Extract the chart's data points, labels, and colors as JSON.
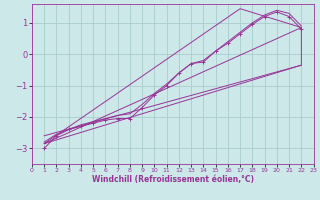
{
  "background_color": "#cce8e8",
  "grid_color": "#aacccc",
  "line_color": "#993399",
  "xlabel": "Windchill (Refroidissement éolien,°C)",
  "xlabel_fontsize": 5.5,
  "xtick_fontsize": 4.5,
  "ytick_fontsize": 6,
  "xlim": [
    0,
    23
  ],
  "ylim": [
    -3.5,
    1.6
  ],
  "yticks": [
    -3,
    -2,
    -1,
    0,
    1
  ],
  "xticks": [
    0,
    1,
    2,
    3,
    4,
    5,
    6,
    7,
    8,
    9,
    10,
    11,
    12,
    13,
    14,
    15,
    16,
    17,
    18,
    19,
    20,
    21,
    22,
    23
  ],
  "lines": [
    {
      "x": [
        1,
        2,
        3,
        4,
        5,
        6,
        7,
        8,
        9,
        10,
        11,
        12,
        13,
        14,
        15,
        16,
        17,
        18,
        19,
        20,
        21,
        22
      ],
      "y": [
        -3.0,
        -2.6,
        -2.4,
        -2.3,
        -2.2,
        -2.1,
        -2.05,
        -2.05,
        -1.7,
        -1.3,
        -1.0,
        -0.6,
        -0.3,
        -0.25,
        0.1,
        0.35,
        0.65,
        0.95,
        1.2,
        1.35,
        1.2,
        0.8
      ],
      "has_markers": true
    },
    {
      "x": [
        1,
        2,
        3,
        4,
        5,
        6,
        7,
        8,
        9,
        10,
        11,
        12,
        13,
        14,
        15,
        16,
        17,
        18,
        19,
        20,
        21,
        22
      ],
      "y": [
        -2.8,
        -2.55,
        -2.4,
        -2.25,
        -2.15,
        -2.05,
        -1.95,
        -1.9,
        -1.6,
        -1.25,
        -0.95,
        -0.6,
        -0.3,
        -0.2,
        0.1,
        0.4,
        0.7,
        1.0,
        1.25,
        1.4,
        1.3,
        0.9
      ],
      "has_markers": false
    },
    {
      "x": [
        1,
        22
      ],
      "y": [
        -2.85,
        0.85
      ],
      "has_markers": false
    },
    {
      "x": [
        1,
        22
      ],
      "y": [
        -2.6,
        -0.35
      ],
      "has_markers": false
    },
    {
      "x": [
        1,
        17,
        22,
        22,
        1
      ],
      "y": [
        -2.85,
        1.45,
        0.85,
        -0.35,
        -2.85
      ],
      "has_markers": false
    }
  ]
}
